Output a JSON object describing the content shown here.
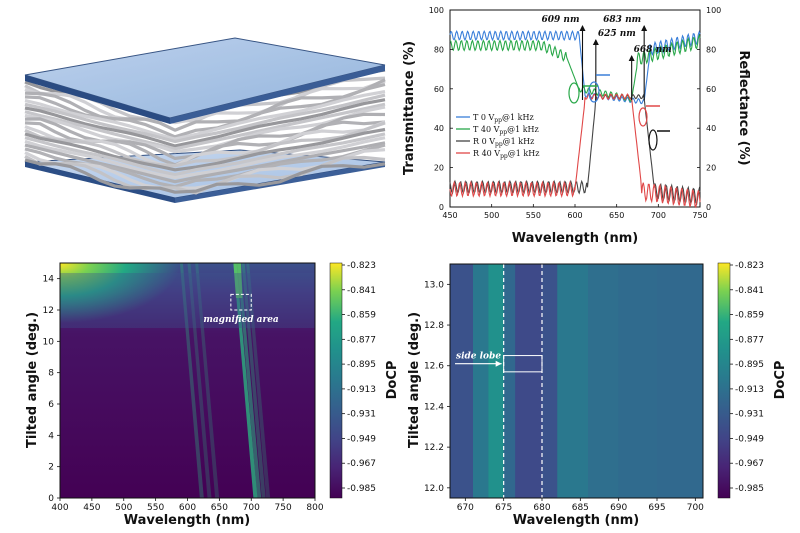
{
  "illustration": {
    "name": "layered-film-illustration"
  },
  "chart_data": [
    {
      "type": "line",
      "xlabel": "Wavelength (nm)",
      "ylabel_left": "Transmittance (%)",
      "ylabel_right": "Reflectance (%)",
      "xlim": [
        450,
        750
      ],
      "xticks": [
        450,
        500,
        550,
        600,
        650,
        700,
        750
      ],
      "ylim": [
        0,
        100
      ],
      "yticks": [
        0,
        20,
        40,
        60,
        80,
        100
      ],
      "legend_position": "left-middle",
      "series": [
        {
          "name": "T 0 V",
          "sub": "pp",
          "suffix": "@1 kHz",
          "color": "#3a7fd9",
          "axis": "left"
        },
        {
          "name": "T 40 V",
          "sub": "pp",
          "suffix": "@1 kHz",
          "color": "#2aa84a",
          "axis": "left"
        },
        {
          "name": "R 0 V",
          "sub": "pp",
          "suffix": "@1 kHz",
          "color": "#444444",
          "axis": "right"
        },
        {
          "name": "R 40 V",
          "sub": "pp",
          "suffix": "@1 kHz",
          "color": "#e04848",
          "axis": "right"
        }
      ],
      "annotations": [
        {
          "text": "609 nm",
          "x": 609
        },
        {
          "text": "625 nm",
          "x": 625
        },
        {
          "text": "668 nm",
          "x": 668
        },
        {
          "text": "683 nm",
          "x": 683
        }
      ]
    },
    {
      "type": "heatmap",
      "xlabel": "Wavelength (nm)",
      "ylabel": "Tilted angle (deg.)",
      "xlim": [
        400,
        800
      ],
      "xticks": [
        400,
        450,
        500,
        550,
        600,
        650,
        700,
        750,
        800
      ],
      "ylim": [
        0,
        15
      ],
      "yticks": [
        0,
        2,
        4,
        6,
        8,
        10,
        12,
        14
      ],
      "colorbar_label": "DoCP",
      "colorbar_ticks": [
        "-0.823",
        "-0.841",
        "-0.859",
        "-0.877",
        "-0.895",
        "-0.913",
        "-0.931",
        "-0.949",
        "-0.967",
        "-0.985"
      ],
      "colorbar_range": [
        -0.994,
        -0.823
      ],
      "annotation": {
        "text": "magnified area",
        "x_range": [
          668,
          700
        ],
        "y_range": [
          12,
          13
        ]
      }
    },
    {
      "type": "heatmap",
      "xlabel": "Wavelength (nm)",
      "ylabel": "Tilted angle (deg.)",
      "xlim": [
        668,
        701
      ],
      "xticks": [
        670,
        675,
        680,
        685,
        690,
        695,
        700
      ],
      "ylim": [
        11.95,
        13.1
      ],
      "yticks": [
        "12.0",
        "12.2",
        "12.4",
        "12.6",
        "12.8",
        "13.0"
      ],
      "colorbar_label": "DoCP",
      "colorbar_ticks": [
        "-0.823",
        "-0.841",
        "-0.859",
        "-0.877",
        "-0.895",
        "-0.913",
        "-0.931",
        "-0.949",
        "-0.967",
        "-0.985"
      ],
      "colorbar_range": [
        -0.994,
        -0.823
      ],
      "dashed_lines_x": [
        675,
        680
      ],
      "annotation": {
        "text": "side lobe",
        "x_range": [
          675,
          680
        ],
        "y_range": [
          12.57,
          12.65
        ]
      }
    }
  ]
}
